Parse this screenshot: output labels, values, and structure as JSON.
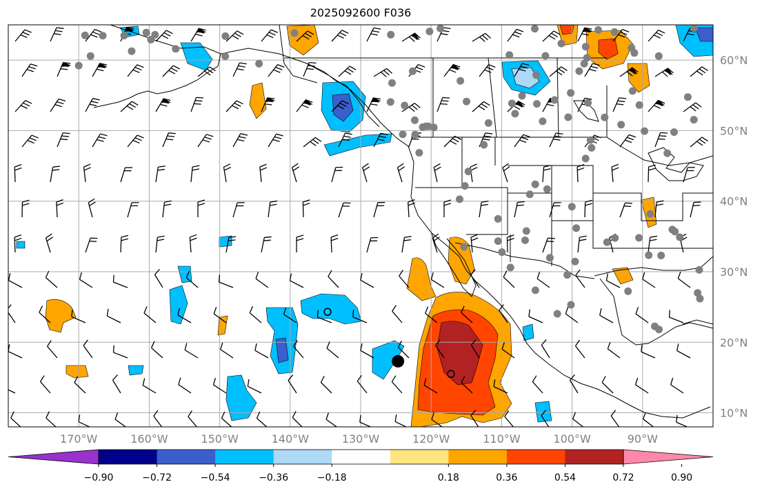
{
  "title": "2025092600 F036",
  "map": {
    "lon_range": [
      -180,
      -80
    ],
    "lat_range": [
      8,
      65
    ],
    "lon_ticks": [
      -170,
      -160,
      -150,
      -140,
      -130,
      -120,
      -110,
      -100,
      -90
    ],
    "lat_ticks": [
      10,
      20,
      30,
      40,
      50,
      60
    ],
    "lon_tick_labels": [
      "170°W",
      "160°W",
      "150°W",
      "140°W",
      "130°W",
      "120°W",
      "110°W",
      "100°W",
      "90°W"
    ],
    "lat_tick_labels": [
      "10°N",
      "20°N",
      "30°N",
      "40°N",
      "50°N",
      "60°N"
    ],
    "grid": true,
    "gridline_color": "#aaaaaa",
    "grey_dot_color": "#808080",
    "markers": {
      "filled_circle": {
        "lon": -124.7,
        "lat": 17.3
      },
      "open_circles": [
        {
          "lon": -134.7,
          "lat": 24.3
        },
        {
          "lon": -117.2,
          "lat": 15.5
        }
      ]
    }
  },
  "colorbar": {
    "tick_values": [
      -0.9,
      -0.72,
      -0.54,
      -0.36,
      -0.18,
      0.18,
      0.36,
      0.54,
      0.72,
      0.9
    ],
    "tick_labels": [
      "−0.90",
      "−0.72",
      "−0.54",
      "−0.36",
      "−0.18",
      "0.18",
      "0.36",
      "0.54",
      "0.72",
      "0.90"
    ],
    "under_color": "#9932cc",
    "over_color": "#ff88aa",
    "colors": [
      "#00008b",
      "#3a5fcd",
      "#00bfff",
      "#add8f6",
      "#ffffff",
      "#ffe680",
      "#ffa500",
      "#ff4500",
      "#b22222"
    ],
    "extend": "both"
  }
}
